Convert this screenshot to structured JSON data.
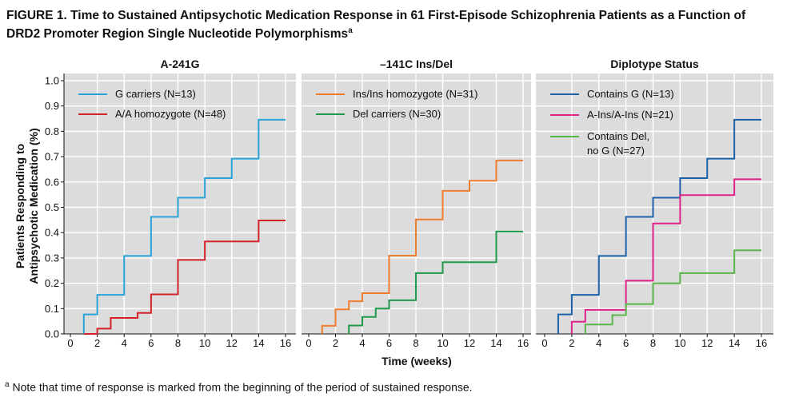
{
  "figure": {
    "title_main": "FIGURE 1. Time to Sustained Antipsychotic Medication Response in 61 First-Episode Schizophrenia Patients as a Function of DRD2 Promoter Region Single Nucleotide Polymorphisms",
    "title_sup": "a",
    "footnote_sup": "a",
    "footnote_text": " Note that time of response is marked from the beginning of the period of sustained response."
  },
  "chart_data": [
    {
      "type": "line",
      "step": true,
      "title": "A-241G",
      "xlabel": "Time (weeks)",
      "ylabel_line1": "Patients Responding to",
      "ylabel_line2": "Antipsychotic Medication (%)",
      "xlim": [
        0,
        16
      ],
      "ylim": [
        0,
        1.0
      ],
      "xticks": [
        "0",
        "2",
        "4",
        "6",
        "8",
        "10",
        "12",
        "14",
        "16"
      ],
      "yticks": [
        "0.0",
        "0.1",
        "0.2",
        "0.3",
        "0.4",
        "0.5",
        "0.6",
        "0.7",
        "0.8",
        "0.9",
        "1.0"
      ],
      "legend_position": "top-left",
      "series": [
        {
          "name": "G carriers (N=13)",
          "color": "#2aa3d8",
          "x": [
            1,
            2,
            4,
            6,
            8,
            10,
            12,
            14,
            16
          ],
          "y": [
            0.077,
            0.154,
            0.308,
            0.462,
            0.538,
            0.615,
            0.692,
            0.846,
            0.846
          ]
        },
        {
          "name": "A/A homozygote (N=48)",
          "color": "#d2232a",
          "x": [
            1,
            2,
            3,
            5,
            6,
            8,
            10,
            14,
            16
          ],
          "y": [
            0.0,
            0.021,
            0.063,
            0.083,
            0.156,
            0.292,
            0.365,
            0.448,
            0.448
          ]
        }
      ]
    },
    {
      "type": "line",
      "step": true,
      "title": "–141C Ins/Del",
      "xlabel": "Time (weeks)",
      "xlim": [
        0,
        16
      ],
      "ylim": [
        0,
        1.0
      ],
      "xticks": [
        "0",
        "2",
        "4",
        "6",
        "8",
        "10",
        "12",
        "14",
        "16"
      ],
      "legend_position": "top-left",
      "series": [
        {
          "name": "Ins/Ins homozygote (N=31)",
          "color": "#f07d2e",
          "x": [
            1,
            2,
            3,
            4,
            6,
            8,
            10,
            12,
            14,
            16
          ],
          "y": [
            0.032,
            0.097,
            0.129,
            0.161,
            0.309,
            0.452,
            0.565,
            0.605,
            0.685,
            0.685
          ]
        },
        {
          "name": "Del carriers (N=30)",
          "color": "#1f9a4a",
          "x": [
            3,
            4,
            5,
            6,
            8,
            10,
            14,
            16
          ],
          "y": [
            0.033,
            0.067,
            0.1,
            0.133,
            0.24,
            0.283,
            0.404,
            0.404
          ]
        }
      ]
    },
    {
      "type": "line",
      "step": true,
      "title": "Diplotype Status",
      "xlabel": "Time (weeks)",
      "xlim": [
        0,
        16
      ],
      "ylim": [
        0,
        1.0
      ],
      "xticks": [
        "0",
        "2",
        "4",
        "6",
        "8",
        "10",
        "12",
        "14",
        "16"
      ],
      "legend_position": "top-left",
      "series": [
        {
          "name": "Contains G (N=13)",
          "color": "#1b63a8",
          "x": [
            1,
            2,
            4,
            6,
            8,
            10,
            12,
            14,
            16
          ],
          "y": [
            0.077,
            0.154,
            0.308,
            0.462,
            0.538,
            0.615,
            0.692,
            0.846,
            0.846
          ]
        },
        {
          "name": "A-Ins/A-Ins (N=21)",
          "color": "#e0218a",
          "x": [
            2,
            3,
            6,
            8,
            10,
            14,
            16
          ],
          "y": [
            0.048,
            0.095,
            0.21,
            0.436,
            0.548,
            0.611,
            0.611
          ]
        },
        {
          "name": "Contains Del,",
          "name_line2": "no G (N=27)",
          "color": "#5ab54a",
          "x": [
            3,
            5,
            6,
            8,
            10,
            14,
            16
          ],
          "y": [
            0.037,
            0.074,
            0.118,
            0.2,
            0.24,
            0.33,
            0.33
          ]
        }
      ]
    }
  ]
}
